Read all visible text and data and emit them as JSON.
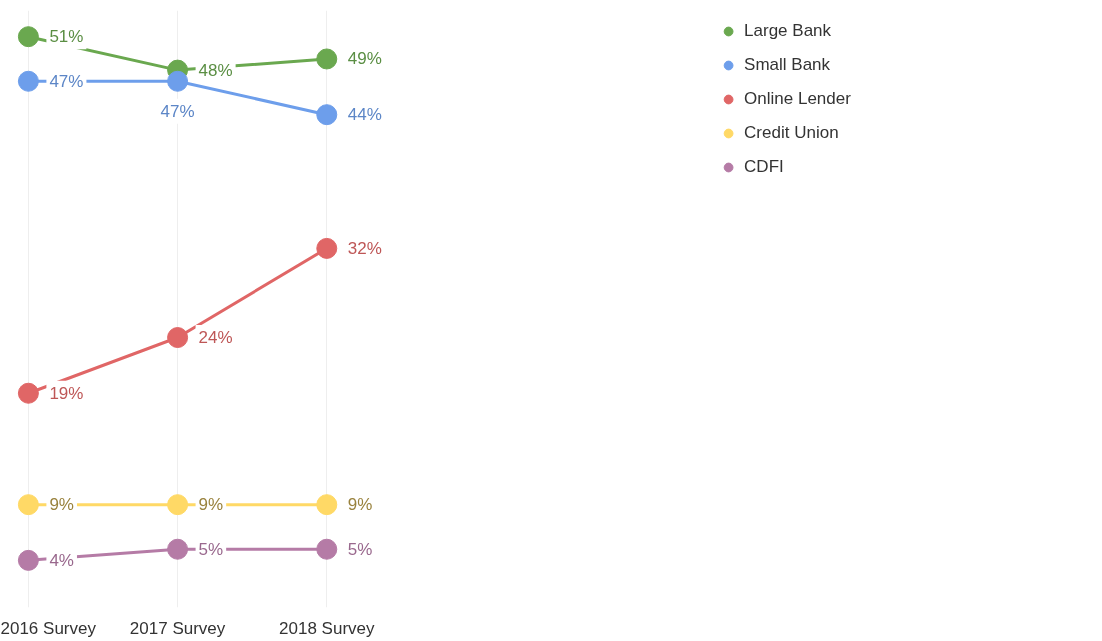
{
  "chart_data": {
    "type": "line",
    "categories": [
      "2016 Survey",
      "2017 Survey",
      "2018 Survey"
    ],
    "series": [
      {
        "name": "Large Bank",
        "color": "#6aa84f",
        "values": [
          51,
          48,
          49
        ],
        "value_labels": [
          "51%",
          "48%",
          "49%"
        ]
      },
      {
        "name": "Small Bank",
        "color": "#6d9eeb",
        "values": [
          47,
          47,
          44
        ],
        "value_labels": [
          "47%",
          "47%",
          "44%"
        ]
      },
      {
        "name": "Online Lender",
        "color": "#e06666",
        "values": [
          19,
          24,
          32
        ],
        "value_labels": [
          "19%",
          "24%",
          "32%"
        ]
      },
      {
        "name": "Credit Union",
        "color": "#ffd966",
        "values": [
          9,
          9,
          9
        ],
        "value_labels": [
          "9%",
          "9%",
          "9%"
        ]
      },
      {
        "name": "CDFI",
        "color": "#b57ba6",
        "values": [
          4,
          5,
          5
        ],
        "value_labels": [
          "4%",
          "5%",
          "5%"
        ]
      }
    ],
    "marker": "circle",
    "legend": "top right",
    "grid": "x",
    "tick_labels": "x"
  }
}
